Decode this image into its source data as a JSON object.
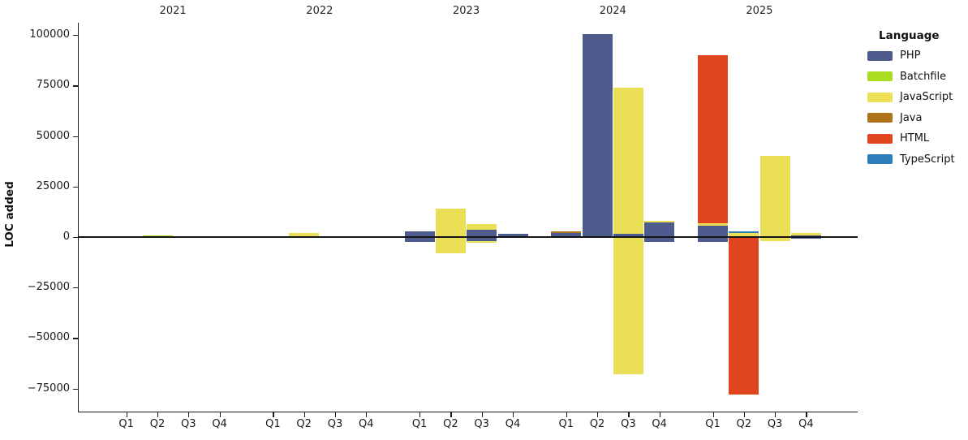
{
  "accent_colors": {
    "axis": "#1a1a1a",
    "background": "#ffffff"
  },
  "chart_data": {
    "type": "bar",
    "title": "",
    "xlabel": "",
    "ylabel": "LOC added",
    "grid": false,
    "legend_position": "right-outside",
    "legend": {
      "title": "Language",
      "entries": [
        {
          "name": "PHP",
          "color": "#4d5b8e"
        },
        {
          "name": "Batchfile",
          "color": "#a9dd21"
        },
        {
          "name": "JavaScript",
          "color": "#ebdf56"
        },
        {
          "name": "Java",
          "color": "#ae7219"
        },
        {
          "name": "HTML",
          "color": "#e0451f"
        },
        {
          "name": "TypeScript",
          "color": "#2e7ebc"
        }
      ]
    },
    "years": [
      "2021",
      "2022",
      "2023",
      "2024",
      "2025"
    ],
    "quarters": [
      "Q1",
      "Q2",
      "Q3",
      "Q4"
    ],
    "y_axis": {
      "ticks": [
        {
          "value": 100000,
          "label": "100000"
        },
        {
          "value": 75000,
          "label": "75000"
        },
        {
          "value": 50000,
          "label": "50000"
        },
        {
          "value": 25000,
          "label": "25000"
        },
        {
          "value": 0,
          "label": "0"
        },
        {
          "value": -25000,
          "label": "−25000"
        },
        {
          "value": -50000,
          "label": "−50000"
        },
        {
          "value": -75000,
          "label": "−75000"
        }
      ],
      "ylim": [
        -85000,
        106000
      ]
    },
    "draw_order_back_to_front": [
      "TypeScript",
      "HTML",
      "Java",
      "JavaScript",
      "Batchfile",
      "PHP"
    ],
    "bars": [
      {
        "year": "2021",
        "quarter": "Q2",
        "language": "Batchfile",
        "loc_added": 900,
        "loc_removed": 0
      },
      {
        "year": "2022",
        "quarter": "Q2",
        "language": "JavaScript",
        "loc_added": 1900,
        "loc_removed": 0
      },
      {
        "year": "2022",
        "quarter": "Q3",
        "language": "JavaScript",
        "loc_added": 300,
        "loc_removed": 0
      },
      {
        "year": "2023",
        "quarter": "Q1",
        "language": "PHP",
        "loc_added": 3000,
        "loc_removed": -2400
      },
      {
        "year": "2023",
        "quarter": "Q2",
        "language": "JavaScript",
        "loc_added": 14000,
        "loc_removed": -8000
      },
      {
        "year": "2023",
        "quarter": "Q3",
        "language": "JavaScript",
        "loc_added": 6500,
        "loc_removed": -2800
      },
      {
        "year": "2023",
        "quarter": "Q3",
        "language": "PHP",
        "loc_added": 3800,
        "loc_removed": -2000
      },
      {
        "year": "2023",
        "quarter": "Q4",
        "language": "PHP",
        "loc_added": 1700,
        "loc_removed": -500
      },
      {
        "year": "2024",
        "quarter": "Q1",
        "language": "Java",
        "loc_added": 2900,
        "loc_removed": 0
      },
      {
        "year": "2024",
        "quarter": "Q1",
        "language": "PHP",
        "loc_added": 2100,
        "loc_removed": -600
      },
      {
        "year": "2024",
        "quarter": "Q2",
        "language": "PHP",
        "loc_added": 100600,
        "loc_removed": -400
      },
      {
        "year": "2024",
        "quarter": "Q3",
        "language": "JavaScript",
        "loc_added": 74000,
        "loc_removed": -68000
      },
      {
        "year": "2024",
        "quarter": "Q3",
        "language": "PHP",
        "loc_added": 1800,
        "loc_removed": 0
      },
      {
        "year": "2024",
        "quarter": "Q4",
        "language": "JavaScript",
        "loc_added": 8200,
        "loc_removed": 0
      },
      {
        "year": "2024",
        "quarter": "Q4",
        "language": "PHP",
        "loc_added": 7100,
        "loc_removed": -2500
      },
      {
        "year": "2025",
        "quarter": "Q1",
        "language": "HTML",
        "loc_added": 90000,
        "loc_removed": 0
      },
      {
        "year": "2025",
        "quarter": "Q1",
        "language": "JavaScript",
        "loc_added": 6700,
        "loc_removed": 0
      },
      {
        "year": "2025",
        "quarter": "Q1",
        "language": "PHP",
        "loc_added": 5500,
        "loc_removed": -2500
      },
      {
        "year": "2025",
        "quarter": "Q2",
        "language": "TypeScript",
        "loc_added": 2800,
        "loc_removed": 0
      },
      {
        "year": "2025",
        "quarter": "Q2",
        "language": "JavaScript",
        "loc_added": 2000,
        "loc_removed": 0
      },
      {
        "year": "2025",
        "quarter": "Q2",
        "language": "HTML",
        "loc_added": 0,
        "loc_removed": -78000
      },
      {
        "year": "2025",
        "quarter": "Q3",
        "language": "JavaScript",
        "loc_added": 40000,
        "loc_removed": -1900
      },
      {
        "year": "2025",
        "quarter": "Q4",
        "language": "JavaScript",
        "loc_added": 1900,
        "loc_removed": 0
      },
      {
        "year": "2025",
        "quarter": "Q4",
        "language": "PHP",
        "loc_added": 900,
        "loc_removed": -700
      }
    ]
  }
}
